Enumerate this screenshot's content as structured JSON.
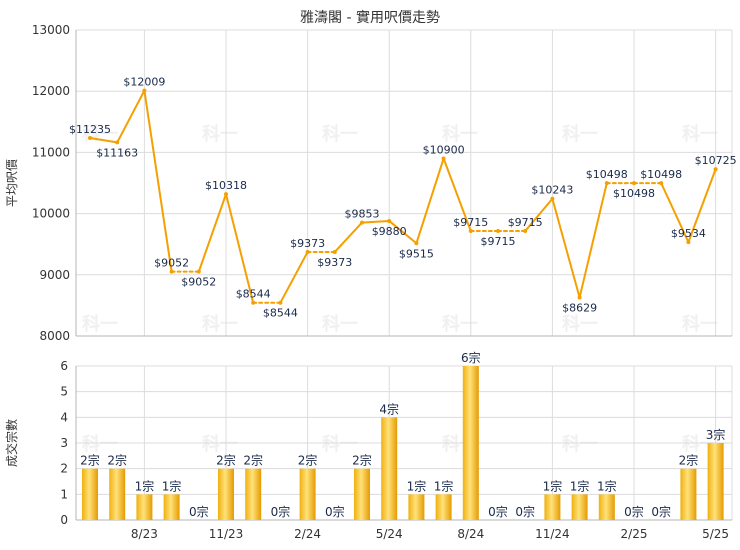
{
  "chart_data": [
    {
      "type": "line",
      "title": "雅濤閣 - 實用呎價走勢",
      "ylabel": "平均呎價",
      "ylim": [
        8000,
        13000
      ],
      "yticks": [
        8000,
        9000,
        10000,
        11000,
        12000,
        13000
      ],
      "grid": true,
      "color": "#f5a000",
      "x_ticks": [
        {
          "label": "8/23",
          "index": 2
        },
        {
          "label": "11/23",
          "index": 5
        },
        {
          "label": "2/24",
          "index": 8
        },
        {
          "label": "5/24",
          "index": 11
        },
        {
          "label": "8/24",
          "index": 14
        },
        {
          "label": "11/24",
          "index": 17
        },
        {
          "label": "2/25",
          "index": 20
        },
        {
          "label": "5/25",
          "index": 23
        }
      ],
      "values": [
        11235,
        11163,
        12009,
        9052,
        9052,
        10318,
        8544,
        8544,
        9373,
        9373,
        9853,
        9880,
        9515,
        10900,
        9715,
        9715,
        9715,
        10243,
        8629,
        10498,
        10498,
        10498,
        9534,
        10725
      ],
      "labels": [
        "$11235",
        "$11163",
        "$12009",
        "$9052",
        "$9052",
        "$10318",
        "$8544",
        "$8544",
        "$9373",
        "$9373",
        "$9853",
        "$9880",
        "$9515",
        "$10900",
        "$9715",
        "$9715",
        "$9715",
        "$10243",
        "$8629",
        "$10498",
        "$10498",
        "$10498",
        "$9534",
        "$10725"
      ],
      "label_pos": [
        "above",
        "below",
        "above",
        "above",
        "below",
        "above",
        "above",
        "below",
        "above",
        "below",
        "above",
        "below",
        "below",
        "above",
        "above",
        "below",
        "above",
        "above",
        "below",
        "above",
        "below",
        "above",
        "above",
        "above"
      ],
      "dashed_segments": [
        3,
        6,
        8,
        14,
        15,
        19,
        20
      ]
    },
    {
      "type": "bar",
      "ylabel": "成交宗數",
      "ylim": [
        0,
        6
      ],
      "yticks": [
        0,
        1,
        2,
        3,
        4,
        5,
        6
      ],
      "grid": true,
      "values": [
        2,
        2,
        1,
        1,
        0,
        2,
        2,
        0,
        2,
        0,
        2,
        4,
        1,
        1,
        6,
        0,
        0,
        1,
        1,
        1,
        0,
        0,
        2,
        3
      ],
      "labels": [
        "2宗",
        "2宗",
        "1宗",
        "1宗",
        "0宗",
        "2宗",
        "2宗",
        "0宗",
        "2宗",
        "0宗",
        "2宗",
        "4宗",
        "1宗",
        "1宗",
        "6宗",
        "0宗",
        "0宗",
        "1宗",
        "1宗",
        "1宗",
        "0宗",
        "0宗",
        "2宗",
        "3宗"
      ]
    }
  ],
  "watermark": "科一"
}
